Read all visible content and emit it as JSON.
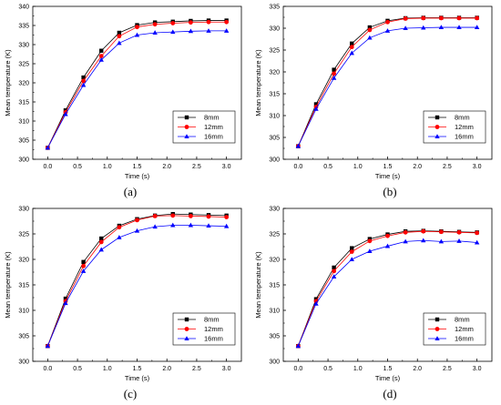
{
  "chart_data": [
    {
      "panel_label": "(a)",
      "type": "line",
      "xlabel": "Time (s)",
      "ylabel": "Mean temperature (K)",
      "xlim": [
        -0.25,
        3.25
      ],
      "ylim": [
        300,
        340
      ],
      "xticks": [
        "0.0",
        "0.5",
        "1.0",
        "1.5",
        "2.0",
        "2.5",
        "3.0"
      ],
      "yticks": [
        "300",
        "305",
        "310",
        "315",
        "320",
        "325",
        "330",
        "335",
        "340"
      ],
      "x": [
        0.0,
        0.3,
        0.6,
        0.9,
        1.2,
        1.5,
        1.8,
        2.1,
        2.4,
        2.7,
        3.0
      ],
      "legend_position": "lower-right",
      "series": [
        {
          "name": "8mm",
          "color": "#000000",
          "marker": "square",
          "values": [
            303.0,
            312.8,
            321.4,
            328.4,
            333.1,
            335.1,
            335.8,
            336.0,
            336.2,
            336.3,
            336.3
          ]
        },
        {
          "name": "12mm",
          "color": "#ff0000",
          "marker": "circle",
          "values": [
            303.0,
            312.3,
            320.5,
            327.0,
            332.2,
            334.6,
            335.3,
            335.6,
            335.8,
            335.9,
            335.9
          ]
        },
        {
          "name": "16mm",
          "color": "#0000ff",
          "marker": "triangle",
          "values": [
            303.0,
            311.8,
            319.4,
            326.0,
            330.4,
            332.5,
            333.1,
            333.3,
            333.5,
            333.6,
            333.6
          ]
        }
      ]
    },
    {
      "panel_label": "(b)",
      "type": "line",
      "xlabel": "Time (s)",
      "ylabel": "Mean temperature (K)",
      "xlim": [
        -0.25,
        3.25
      ],
      "ylim": [
        300,
        335
      ],
      "xticks": [
        "0.0",
        "0.5",
        "1.0",
        "1.5",
        "2.0",
        "2.5",
        "3.0"
      ],
      "yticks": [
        "300",
        "305",
        "310",
        "315",
        "320",
        "325",
        "330",
        "335"
      ],
      "x": [
        0.0,
        0.3,
        0.6,
        0.9,
        1.2,
        1.5,
        1.8,
        2.1,
        2.4,
        2.7,
        3.0
      ],
      "legend_position": "lower-right",
      "series": [
        {
          "name": "8mm",
          "color": "#000000",
          "marker": "square",
          "values": [
            303.0,
            312.6,
            320.5,
            326.5,
            330.2,
            331.7,
            332.3,
            332.4,
            332.4,
            332.4,
            332.4
          ]
        },
        {
          "name": "12mm",
          "color": "#ff0000",
          "marker": "circle",
          "values": [
            303.0,
            312.0,
            319.6,
            325.7,
            329.6,
            331.4,
            332.2,
            332.3,
            332.3,
            332.3,
            332.3
          ]
        },
        {
          "name": "16mm",
          "color": "#0000ff",
          "marker": "triangle",
          "values": [
            303.0,
            311.5,
            318.6,
            324.3,
            327.8,
            329.4,
            330.0,
            330.1,
            330.2,
            330.2,
            330.2
          ]
        }
      ]
    },
    {
      "panel_label": "(c)",
      "type": "line",
      "xlabel": "Time (s)",
      "ylabel": "Mean temperature (K)",
      "xlim": [
        -0.25,
        3.25
      ],
      "ylim": [
        300,
        330
      ],
      "xticks": [
        "0.0",
        "0.5",
        "1.0",
        "1.5",
        "2.0",
        "2.5",
        "3.0"
      ],
      "yticks": [
        "300",
        "305",
        "310",
        "315",
        "320",
        "325",
        "330"
      ],
      "x": [
        0.0,
        0.3,
        0.6,
        0.9,
        1.2,
        1.5,
        1.8,
        2.1,
        2.4,
        2.7,
        3.0
      ],
      "legend_position": "lower-right",
      "series": [
        {
          "name": "8mm",
          "color": "#000000",
          "marker": "square",
          "values": [
            303.0,
            312.3,
            319.5,
            324.1,
            326.6,
            327.9,
            328.6,
            328.9,
            328.8,
            328.7,
            328.6
          ]
        },
        {
          "name": "12mm",
          "color": "#ff0000",
          "marker": "circle",
          "values": [
            303.0,
            311.8,
            318.7,
            323.4,
            326.3,
            327.7,
            328.5,
            328.6,
            328.5,
            328.4,
            328.3
          ]
        },
        {
          "name": "16mm",
          "color": "#0000ff",
          "marker": "triangle",
          "values": [
            303.0,
            311.4,
            317.7,
            321.9,
            324.3,
            325.6,
            326.4,
            326.7,
            326.7,
            326.6,
            326.5
          ]
        }
      ]
    },
    {
      "panel_label": "(d)",
      "type": "line",
      "xlabel": "Time (s)",
      "ylabel": "Mean temperature (K)",
      "xlim": [
        -0.25,
        3.25
      ],
      "ylim": [
        300,
        330
      ],
      "xticks": [
        "0.0",
        "0.5",
        "1.0",
        "1.5",
        "2.0",
        "2.5",
        "3.0"
      ],
      "yticks": [
        "300",
        "305",
        "310",
        "315",
        "320",
        "325",
        "330"
      ],
      "x": [
        0.0,
        0.3,
        0.6,
        0.9,
        1.2,
        1.5,
        1.8,
        2.1,
        2.4,
        2.7,
        3.0
      ],
      "legend_position": "lower-right",
      "series": [
        {
          "name": "8mm",
          "color": "#000000",
          "marker": "square",
          "values": [
            303.0,
            312.2,
            318.4,
            322.2,
            324.0,
            324.9,
            325.5,
            325.6,
            325.5,
            325.4,
            325.3
          ]
        },
        {
          "name": "12mm",
          "color": "#ff0000",
          "marker": "circle",
          "values": [
            303.0,
            311.8,
            317.7,
            321.5,
            323.6,
            324.6,
            325.3,
            325.5,
            325.4,
            325.3,
            325.2
          ]
        },
        {
          "name": "16mm",
          "color": "#0000ff",
          "marker": "triangle",
          "values": [
            303.0,
            311.3,
            316.6,
            320.0,
            321.6,
            322.6,
            323.5,
            323.7,
            323.5,
            323.6,
            323.3
          ]
        }
      ]
    }
  ]
}
